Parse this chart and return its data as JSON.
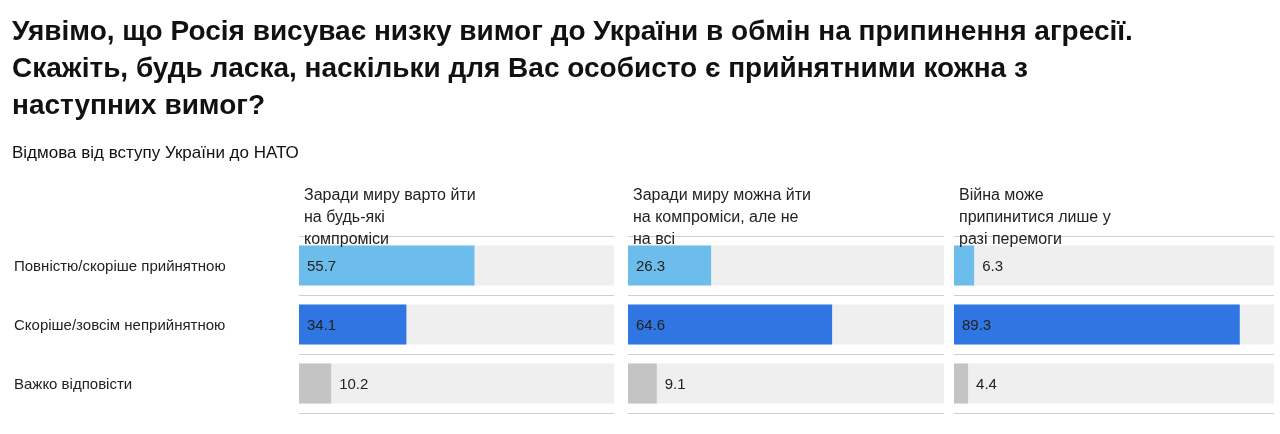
{
  "chart_data": [
    {
      "type": "other",
      "title": "Уявімо, що Росія висуває низку вимог до України в обмін на припинення агресії. Скажіть, будь ласка, наскільки для Вас особисто є прийнятними кожна з наступних вимог?",
      "subtitle": "Відмова від вступу України до НАТО"
    },
    {
      "type": "bar",
      "orientation": "horizontal",
      "title": "Заради миру варто йти на будь-які компроміси",
      "categories": [
        "Повністю/скоріше прийнятною",
        "Скоріше/зовсім неприйнятною",
        "Важко відповісти"
      ],
      "values": [
        55.7,
        34.1,
        10.2
      ],
      "colors": [
        "#6cbdec",
        "#2f76e3",
        "#c4c4c4"
      ],
      "xlim": [
        0,
        100
      ],
      "data_labels": true,
      "grid": "y",
      "tick_labels": "y"
    },
    {
      "type": "bar",
      "orientation": "horizontal",
      "title": "Заради миру можна йти на компроміси, але не на всі",
      "categories": [
        null,
        null,
        null
      ],
      "values": [
        26.3,
        64.6,
        9.1
      ],
      "colors": [
        "#6cbdec",
        "#2f76e3",
        "#c4c4c4"
      ],
      "xlim": [
        0,
        100
      ],
      "data_labels": true,
      "grid": "y",
      "tick_labels": false
    },
    {
      "type": "bar",
      "orientation": "horizontal",
      "title": "Війна може припинитися лише у разі перемоги",
      "categories": [
        null,
        null,
        null
      ],
      "values": [
        6.3,
        89.3,
        4.4
      ],
      "colors": [
        "#6cbdec",
        "#2f76e3",
        "#c4c4c4"
      ],
      "xlim": [
        0,
        100
      ],
      "data_labels": true,
      "grid": "y",
      "tick_labels": false
    }
  ]
}
